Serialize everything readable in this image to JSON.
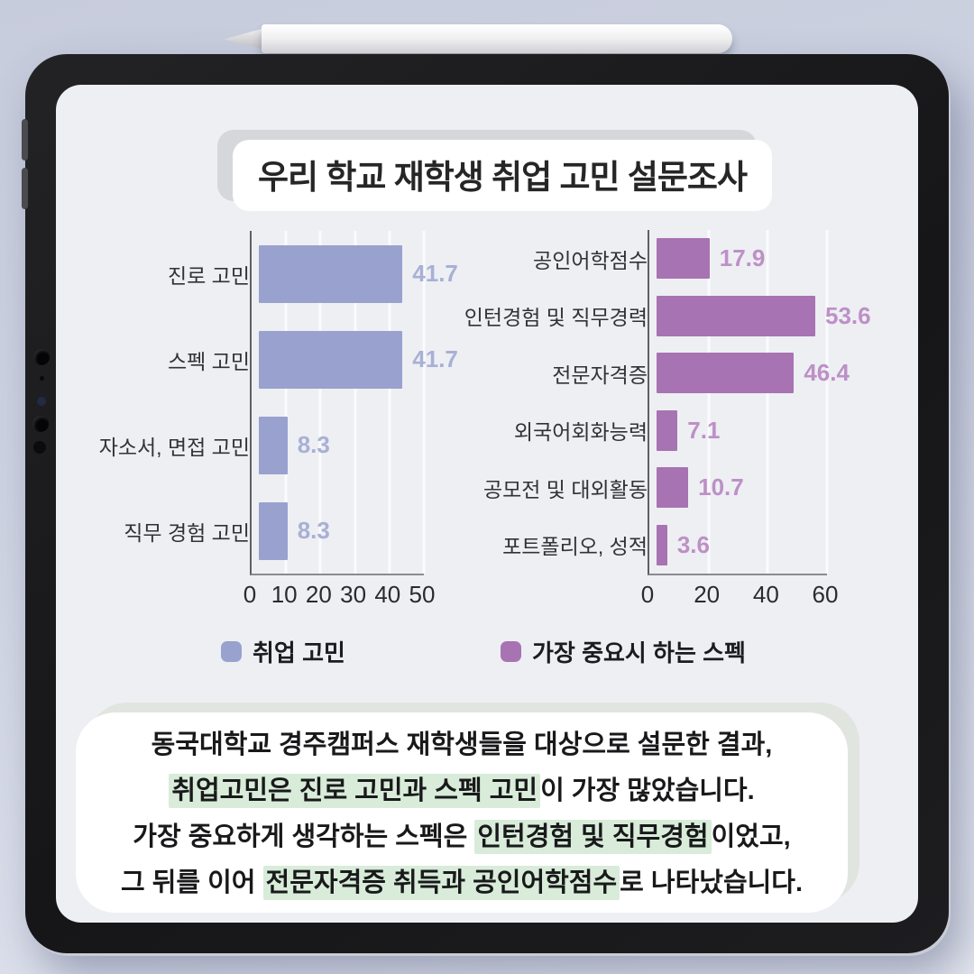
{
  "header": {
    "title": "우리 학교 재학생 취업 고민 설문조사"
  },
  "colors": {
    "screen_bg": "#edeff3",
    "highlight": "#d8ecd9",
    "axis": "#5f5f64",
    "gridline": "#fafbfd"
  },
  "chart_data": [
    {
      "type": "bar",
      "orientation": "horizontal",
      "categories": [
        "진로 고민",
        "스펙 고민",
        "자소서, 면접 고민",
        "직무 경험 고민"
      ],
      "values": [
        41.7,
        41.7,
        8.3,
        8.3
      ],
      "xlim": [
        0,
        50
      ],
      "xticks": [
        0,
        10,
        20,
        30,
        40,
        50
      ],
      "legend": "취업 고민",
      "bar_color": "#99a1ce",
      "value_color": "#a9b0d5",
      "grid": true,
      "legend_position": "bottom-left"
    },
    {
      "type": "bar",
      "orientation": "horizontal",
      "categories": [
        "공인어학점수",
        "인턴경험 및 직무경력",
        "전문자격증",
        "외국어회화능력",
        "공모전 및 대외활동",
        "포트폴리오, 성적"
      ],
      "values": [
        17.9,
        53.6,
        46.4,
        7.1,
        10.7,
        3.6
      ],
      "xlim": [
        0,
        60
      ],
      "xticks": [
        0,
        20,
        40,
        60
      ],
      "legend": "가장 중요시 하는 스펙",
      "bar_color": "#a873b2",
      "value_color": "#bd90c6",
      "grid": true,
      "legend_position": "bottom-right"
    }
  ],
  "summary": {
    "lines": [
      {
        "segments": [
          {
            "text": "동국대학교 경주캠퍼스 재학생들을 대상으로 설문한 결과,",
            "highlight": false
          }
        ]
      },
      {
        "segments": [
          {
            "text": "취업고민은 진로 고민과 스펙 고민",
            "highlight": true
          },
          {
            "text": "이 가장 많았습니다.",
            "highlight": false
          }
        ]
      },
      {
        "segments": [
          {
            "text": "가장 중요하게 생각하는 스펙은 ",
            "highlight": false
          },
          {
            "text": "인턴경험 및 직무경험",
            "highlight": true
          },
          {
            "text": "이었고,",
            "highlight": false
          }
        ]
      },
      {
        "segments": [
          {
            "text": "그 뒤를 이어 ",
            "highlight": false
          },
          {
            "text": "전문자격증 취득과 공인어학점수",
            "highlight": true
          },
          {
            "text": "로 나타났습니다.",
            "highlight": false
          }
        ]
      }
    ]
  }
}
